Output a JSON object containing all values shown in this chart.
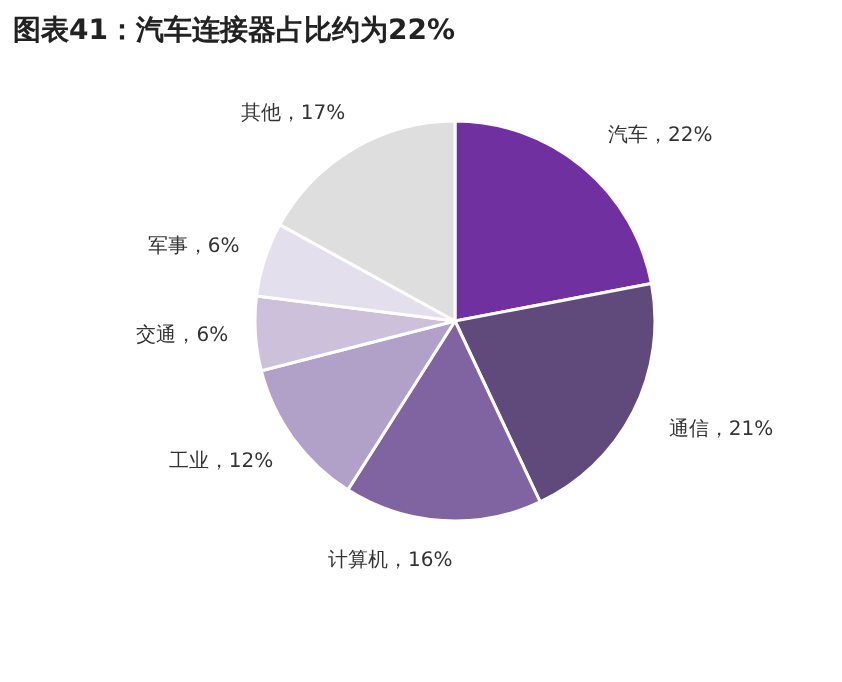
{
  "chart_data": {
    "type": "pie",
    "title": "图表41：汽车连接器占比约为22%",
    "categories": [
      "汽车",
      "通信",
      "计算机",
      "工业",
      "交通",
      "军事",
      "其他"
    ],
    "values": [
      22,
      21,
      16,
      12,
      6,
      6,
      17
    ],
    "colors": [
      "#7030a0",
      "#5f4a7b",
      "#8064a2",
      "#b1a0c7",
      "#ccc0da",
      "#e4dfec",
      "#dedede"
    ],
    "value_labels": [
      "，22%",
      "，21%",
      "，16%",
      "，12%",
      "，6%",
      "，6%",
      "，17%"
    ]
  }
}
